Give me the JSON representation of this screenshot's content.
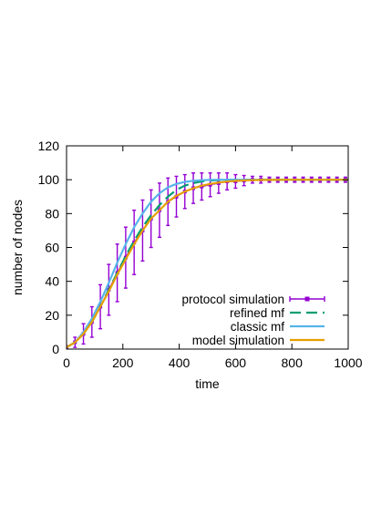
{
  "chart_data": {
    "type": "line",
    "title": "",
    "xlabel": "time",
    "ylabel": "number of nodes",
    "xlim": [
      0,
      1000
    ],
    "ylim": [
      0,
      120
    ],
    "xticks": [
      0,
      200,
      400,
      600,
      800,
      1000
    ],
    "yticks": [
      0,
      20,
      40,
      60,
      80,
      100,
      120
    ],
    "grid": false,
    "legend_position": "bottom-right",
    "series": [
      {
        "name": "protocol simulation",
        "style": "points-with-errorbars",
        "color": "#9400d3",
        "x": [
          0,
          30,
          60,
          90,
          120,
          150,
          180,
          210,
          240,
          270,
          300,
          330,
          360,
          390,
          420,
          450,
          480,
          510,
          540,
          570,
          600,
          630,
          660,
          690,
          720,
          750,
          780,
          810,
          840,
          870,
          900,
          930,
          960,
          990
        ],
        "y": [
          1,
          4,
          9,
          16,
          25,
          35,
          45,
          54,
          63,
          70,
          77,
          82,
          87,
          90,
          93,
          95,
          96,
          97,
          98,
          99,
          99,
          99.5,
          100,
          100,
          100,
          100,
          100,
          100,
          100,
          100,
          100,
          100,
          100,
          100
        ],
        "err": [
          1,
          3,
          6,
          9,
          13,
          15,
          17,
          18,
          19,
          18,
          17,
          16,
          14,
          12,
          10,
          9,
          8,
          7,
          6,
          5,
          4,
          3,
          2,
          2,
          1.5,
          1.5,
          1.5,
          1.5,
          1.5,
          1.5,
          1.5,
          1.5,
          1.5,
          1.5
        ]
      },
      {
        "name": "refined mf",
        "style": "dashed",
        "color": "#009e73",
        "x": [
          0,
          30,
          60,
          90,
          120,
          150,
          180,
          210,
          240,
          270,
          300,
          330,
          360,
          390,
          420,
          450,
          480,
          510,
          540,
          570,
          600,
          650,
          700,
          800,
          900,
          1000
        ],
        "y": [
          1,
          4,
          9,
          16,
          25,
          35,
          45,
          55,
          64,
          72,
          79,
          85,
          90,
          94,
          96.5,
          98,
          99,
          99.5,
          99.8,
          100,
          100,
          100,
          100,
          100,
          100,
          100
        ]
      },
      {
        "name": "classic mf",
        "style": "solid",
        "color": "#56b4e9",
        "x": [
          0,
          30,
          60,
          90,
          120,
          150,
          180,
          210,
          240,
          270,
          300,
          330,
          360,
          390,
          420,
          450,
          480,
          510,
          540,
          600,
          700,
          800,
          900,
          1000
        ],
        "y": [
          1,
          4,
          10,
          18,
          28,
          39,
          51,
          62,
          72,
          80,
          87,
          92,
          95.5,
          97.5,
          98.7,
          99.4,
          99.7,
          99.9,
          100,
          100,
          100,
          100,
          100,
          100
        ]
      },
      {
        "name": "model simulation",
        "style": "solid",
        "color": "#e69f00",
        "x": [
          0,
          30,
          60,
          90,
          120,
          150,
          180,
          210,
          240,
          270,
          300,
          330,
          360,
          390,
          420,
          450,
          480,
          510,
          540,
          570,
          600,
          650,
          700,
          800,
          900,
          1000
        ],
        "y": [
          1,
          4,
          9,
          16,
          25,
          34,
          44,
          53,
          62,
          70,
          77,
          82,
          87,
          90.5,
          93,
          95,
          96.5,
          97.5,
          98.3,
          98.9,
          99.3,
          99.7,
          99.9,
          100,
          100,
          100
        ]
      }
    ]
  }
}
